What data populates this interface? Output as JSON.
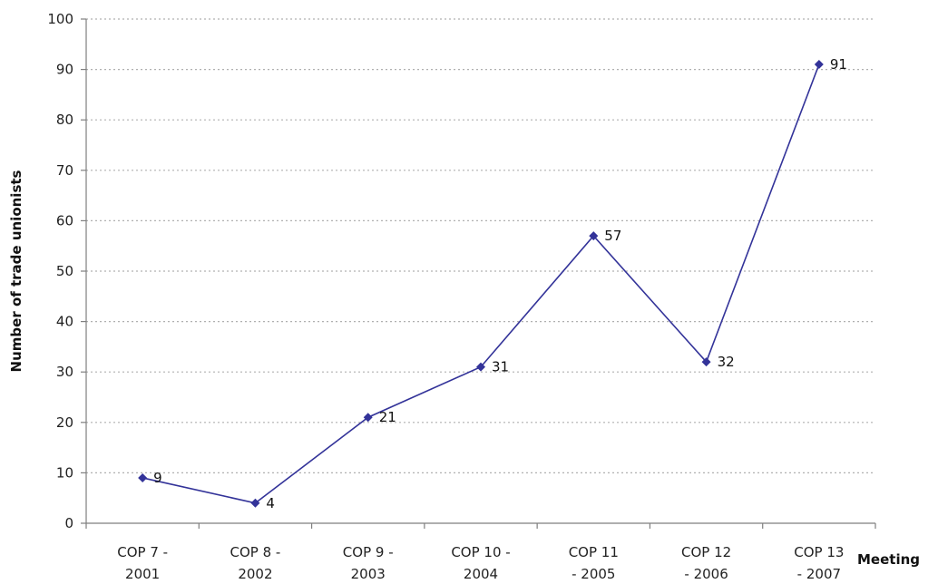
{
  "chart_data": {
    "type": "line",
    "title": "",
    "xlabel": "Meeting",
    "ylabel": "Number of trade unionists",
    "categories": [
      [
        "COP 7 -",
        "2001"
      ],
      [
        "COP 8 -",
        "2002"
      ],
      [
        "COP 9 -",
        "2003"
      ],
      [
        "COP 10 -",
        "2004"
      ],
      [
        "COP 11",
        "- 2005"
      ],
      [
        "COP 12",
        "- 2006"
      ],
      [
        "COP 13",
        "- 2007"
      ]
    ],
    "values": [
      9,
      4,
      21,
      31,
      57,
      32,
      91
    ],
    "data_labels": [
      "9",
      "4",
      "21",
      "31",
      "57",
      "32",
      "91"
    ],
    "ylim": [
      0,
      100
    ],
    "yticks": [
      0,
      10,
      20,
      30,
      40,
      50,
      60,
      70,
      80,
      90,
      100
    ],
    "grid": "horizontal dotted",
    "legend": "none",
    "series_color": "#333399",
    "axis_color": "#7f7f7f"
  }
}
